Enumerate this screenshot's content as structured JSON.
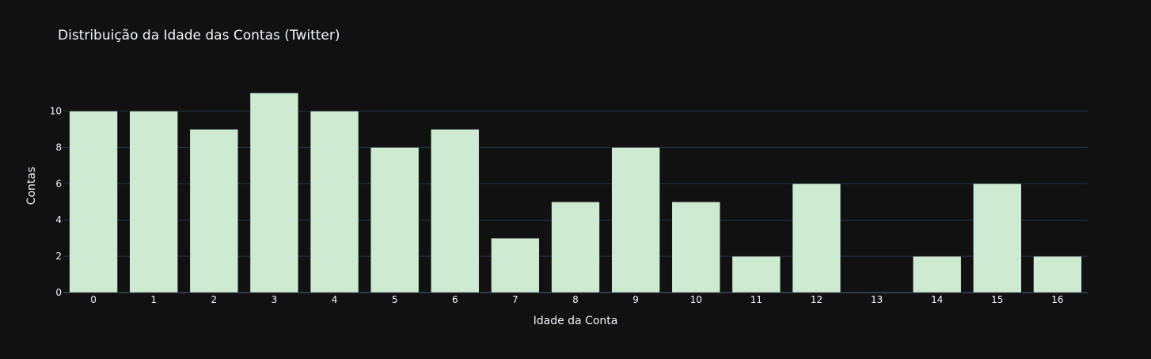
{
  "chart_data": {
    "type": "bar",
    "title": "Distribuição da Idade das Contas (Twitter)",
    "xlabel": "Idade da Conta",
    "ylabel": "Contas",
    "categories": [
      "0",
      "1",
      "2",
      "3",
      "4",
      "5",
      "6",
      "7",
      "8",
      "9",
      "10",
      "11",
      "12",
      "13",
      "14",
      "15",
      "16"
    ],
    "values": [
      10,
      10,
      9,
      11,
      10,
      8,
      9,
      3,
      5,
      8,
      5,
      2,
      6,
      0,
      2,
      6,
      2
    ],
    "ylim": [
      0,
      12.2
    ],
    "yticks": [
      0,
      2,
      4,
      6,
      8,
      10
    ],
    "grid": true,
    "colors": {
      "background": "#111111",
      "bar": "#ceead3",
      "grid": "#283442",
      "zeroline": "#506784",
      "text": "#f2f5fa"
    }
  }
}
